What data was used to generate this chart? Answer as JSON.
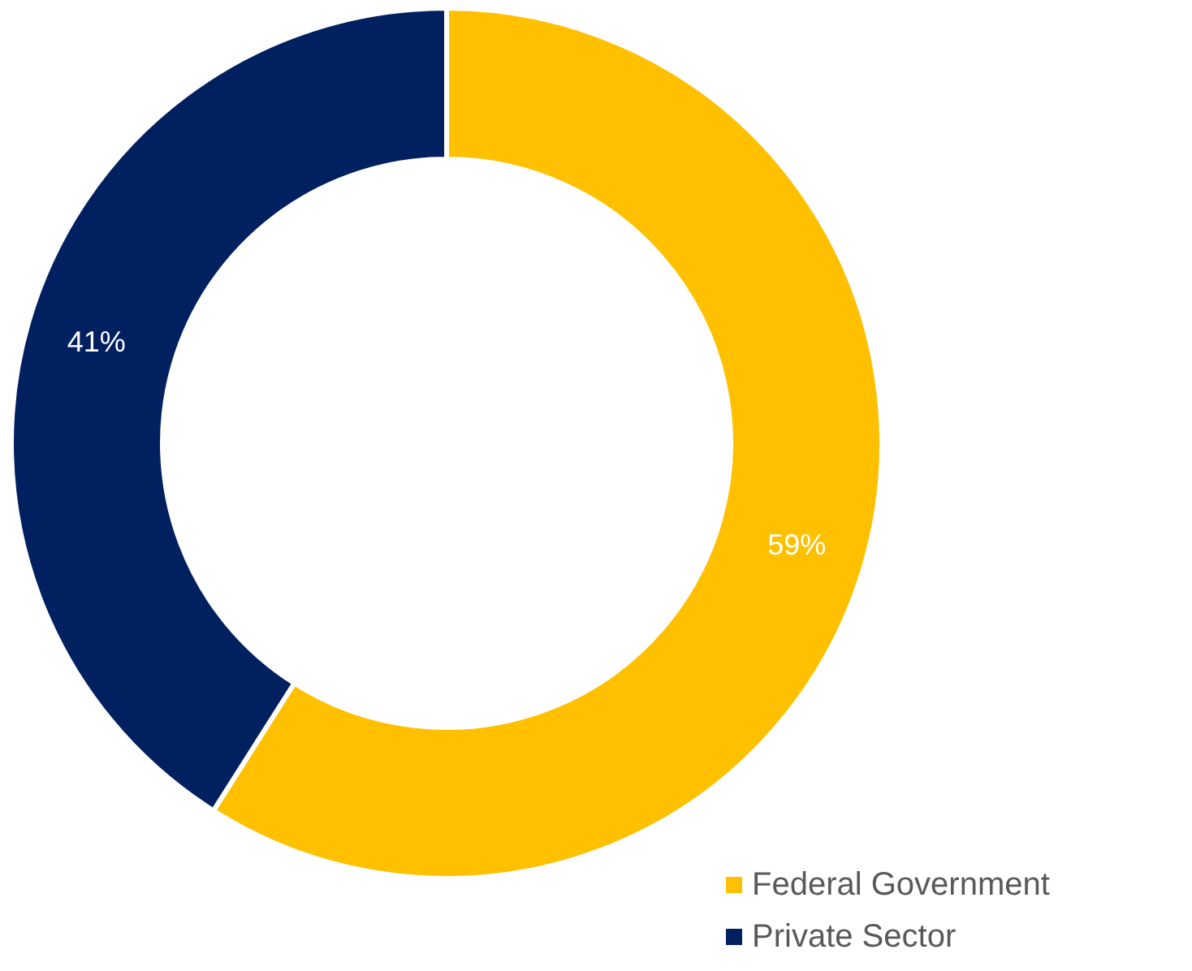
{
  "chart_data": {
    "type": "donut",
    "categories": [
      "Federal Government",
      "Private Sector"
    ],
    "values": [
      59,
      41
    ],
    "colors": [
      "#ffc000",
      "#002060"
    ],
    "value_labels": [
      "59%",
      "41%"
    ],
    "legend": "bottom right"
  }
}
